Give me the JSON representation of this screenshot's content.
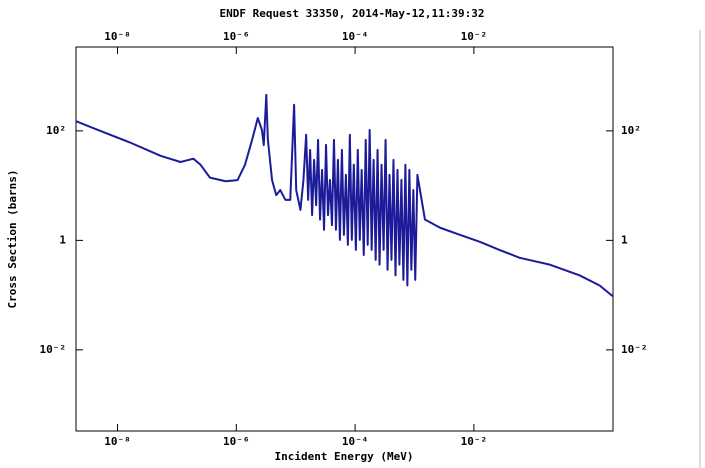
{
  "chart_data": {
    "type": "line",
    "title": "ENDF Request 33350, 2014-May-12,11:39:32",
    "xlabel": "Incident Energy (MeV)",
    "ylabel": "Cross Section (barns)",
    "color": "#1c1c9a",
    "xscale": "log",
    "yscale": "log",
    "xlim": [
      2e-09,
      2.2
    ],
    "ylim": [
      0.00033,
      3400
    ],
    "xticks": [
      {
        "value": 1e-08,
        "label": "10⁻⁸"
      },
      {
        "value": 1e-06,
        "label": "10⁻⁶"
      },
      {
        "value": 0.0001,
        "label": "10⁻⁴"
      },
      {
        "value": 0.01,
        "label": "10⁻²"
      }
    ],
    "yticks": [
      {
        "value": 100,
        "label": "10²"
      },
      1,
      {
        "value": 0.01,
        "label": "10⁻²"
      }
    ],
    "x": [
      2e-09,
      5.1e-09,
      1.7e-08,
      5.3e-08,
      1.15e-07,
      1.9e-07,
      2.5e-07,
      3.6e-07,
      6.6e-07,
      1.05e-06,
      1.4e-06,
      1.85e-06,
      2.3e-06,
      2.7e-06,
      2.9e-06,
      3.2e-06,
      3.4e-06,
      4e-06,
      4.7e-06,
      5.5e-06,
      6.7e-06,
      8.1e-06,
      9.4e-06,
      1.02e-05,
      1.2e-05,
      1.35e-05,
      1.5e-05,
      1.62e-05,
      1.75e-05,
      1.89e-05,
      2.04e-05,
      2.21e-05,
      2.38e-05,
      2.57e-05,
      2.78e-05,
      3e-05,
      3.24e-05,
      3.5e-05,
      3.78e-05,
      4.08e-05,
      4.41e-05,
      4.76e-05,
      5.14e-05,
      5.55e-05,
      6e-05,
      6.48e-05,
      7e-05,
      7.56e-05,
      8.16e-05,
      8.81e-05,
      9.52e-05,
      0.000103,
      0.000111,
      0.00012,
      0.000129,
      0.00014,
      0.000151,
      0.000163,
      0.000176,
      0.00019,
      0.000205,
      0.000222,
      0.000239,
      0.000258,
      0.000279,
      0.000302,
      0.000326,
      0.000352,
      0.00038,
      0.00041,
      0.000443,
      0.000479,
      0.000517,
      0.000558,
      0.000603,
      0.000651,
      0.000703,
      0.000759,
      0.00082,
      0.000886,
      0.000957,
      0.00103,
      0.00112,
      0.0015,
      0.0027,
      0.0058,
      0.0126,
      0.027,
      0.059,
      0.19,
      0.6,
      1.31,
      2.17
    ],
    "values": [
      150,
      100,
      60,
      35,
      27,
      31,
      24,
      14,
      12,
      12.6,
      24,
      69,
      172,
      104,
      55,
      455,
      69,
      12.6,
      6.7,
      8.3,
      5.5,
      5.5,
      300,
      8.3,
      3.6,
      12.6,
      85,
      5.5,
      45,
      2.9,
      29.5,
      4.4,
      68.5,
      2.4,
      19.4,
      1.56,
      55.5,
      2.9,
      12.7,
      1.9,
      68.5,
      1.56,
      29.5,
      1.02,
      45,
      1.26,
      15.7,
      0.83,
      84.5,
      1.02,
      24,
      0.67,
      45,
      1.02,
      19.4,
      0.54,
      68.5,
      0.83,
      104,
      0.67,
      29.5,
      0.44,
      45,
      0.36,
      24,
      0.67,
      68.5,
      0.29,
      15.7,
      0.44,
      29.5,
      0.23,
      19.4,
      0.36,
      12.7,
      0.19,
      24,
      0.15,
      19.4,
      0.29,
      8.3,
      0.19,
      15.7,
      2.4,
      1.7,
      1.26,
      0.94,
      0.67,
      0.48,
      0.36,
      0.23,
      0.15,
      0.096
    ]
  }
}
